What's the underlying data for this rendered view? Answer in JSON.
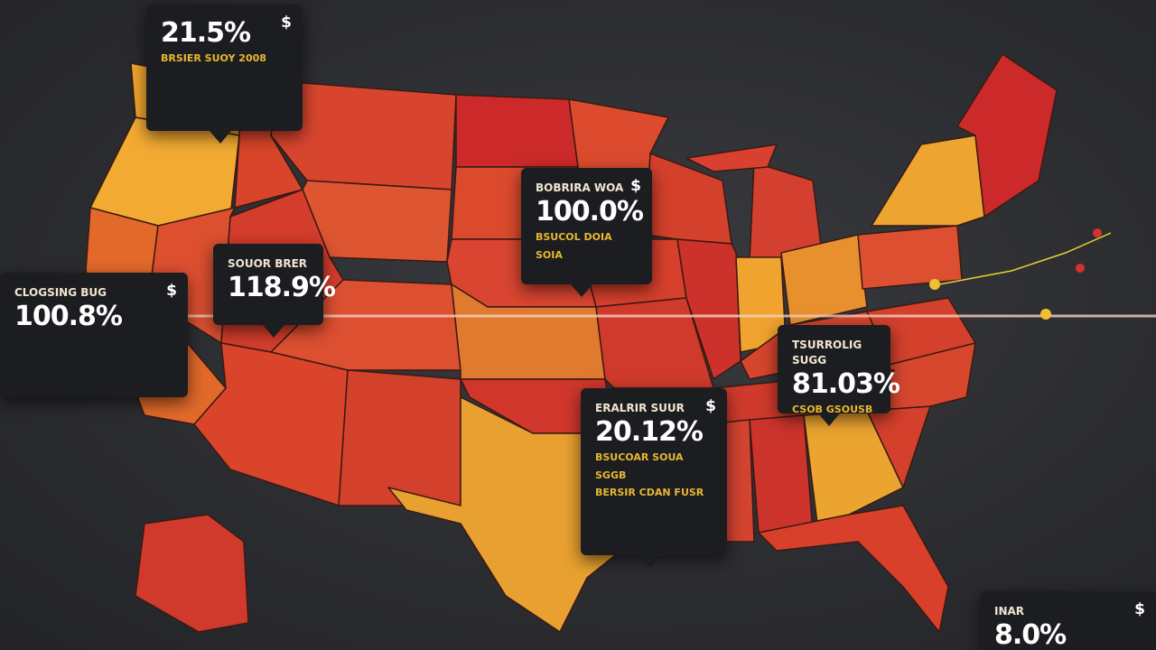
{
  "callouts": [
    {
      "value": "21.5%",
      "currency": "$",
      "lines": [
        "BRSIER SUOY 2008"
      ]
    },
    {
      "heading": "BOBRIRA WOA",
      "currency": "$",
      "value": "100.0%",
      "lines": [
        "BSUCOL DOIA SOIA"
      ]
    },
    {
      "heading": "SOUOR BRER",
      "value": "118.9%"
    },
    {
      "heading": "CLOGSING BUG",
      "currency": "$",
      "value": "100.8%"
    },
    {
      "heading": "TSURROLIG SUGG",
      "value": "81.03%",
      "lines": [
        "CSOB GSOUSB"
      ]
    },
    {
      "heading": "ERALRIR SUUR",
      "currency": "$",
      "value": "20.12%",
      "lines": [
        "BSUCOAR SOUA SGGB",
        "BERSIR CDAN FUSR"
      ]
    },
    {
      "heading": "INAR",
      "currency": "$",
      "value": "8.0%"
    }
  ]
}
